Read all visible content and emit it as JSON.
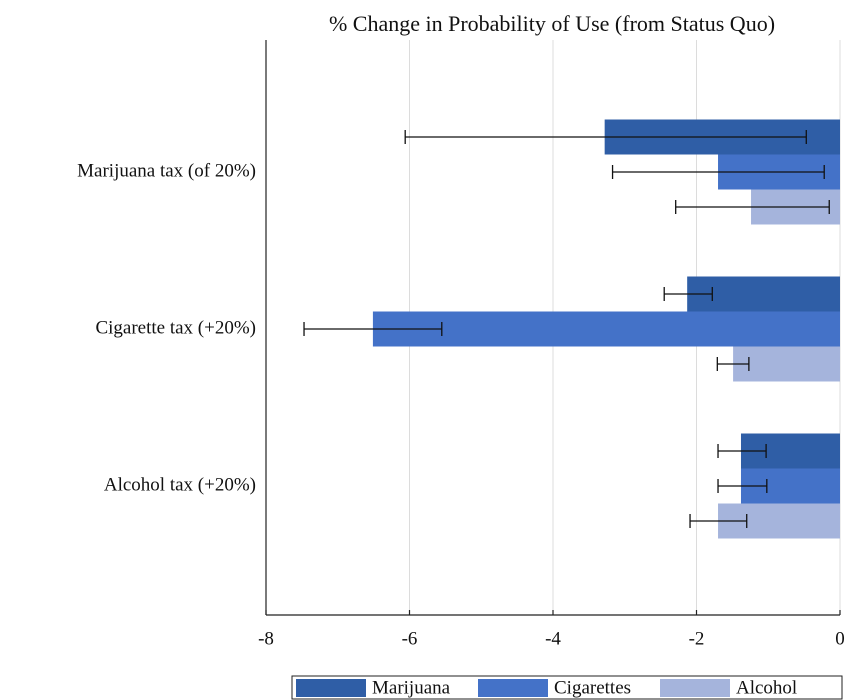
{
  "chart_data": {
    "type": "bar",
    "orientation": "horizontal",
    "title": "% Change in Probability of Use (from Status Quo)",
    "categories": [
      "Marijuana tax (of 20%)",
      "Cigarette tax (+20%)",
      "Alcohol tax (+20%)"
    ],
    "series": [
      {
        "name": "Marijuana",
        "color": "#2f5ea6",
        "values": [
          -3.28,
          -2.13,
          -1.38
        ],
        "ci_low": [
          -6.06,
          -2.45,
          -1.7
        ],
        "ci_high": [
          -0.47,
          -1.78,
          -1.03
        ]
      },
      {
        "name": "Cigarettes",
        "color": "#4472c8",
        "values": [
          -1.7,
          -6.51,
          -1.38
        ],
        "ci_low": [
          -3.17,
          -7.47,
          -1.7
        ],
        "ci_high": [
          -0.22,
          -5.55,
          -1.02
        ]
      },
      {
        "name": "Alcohol",
        "color": "#a5b4dc",
        "values": [
          -1.24,
          -1.49,
          -1.7
        ],
        "ci_low": [
          -2.29,
          -1.71,
          -2.09
        ],
        "ci_high": [
          -0.15,
          -1.27,
          -1.3
        ]
      }
    ],
    "xlim": [
      -8,
      0
    ],
    "xticks": [
      -8,
      -6,
      -4,
      -2,
      0
    ],
    "grid": true,
    "legend": "bottom"
  }
}
